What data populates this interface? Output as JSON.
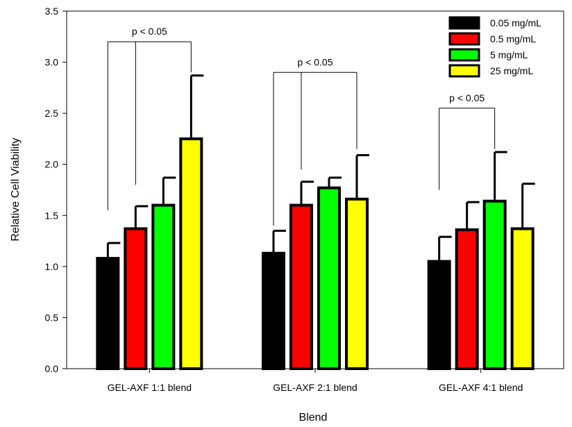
{
  "chart_data": {
    "type": "bar",
    "xlabel": "Blend",
    "ylabel": "Relative Cell Viability",
    "ylim": [
      0,
      3.5
    ],
    "yticks": [
      "0.0",
      "0.5",
      "1.0",
      "1.5",
      "2.0",
      "2.5",
      "3.0",
      "3.5"
    ],
    "categories": [
      "GEL-AXF 1:1 blend",
      "GEL-AXF 2:1 blend",
      "GEL-AXF 4:1 blend"
    ],
    "series": [
      {
        "name": "0.05 mg/mL",
        "color": "#000000",
        "values": [
          1.08,
          1.13,
          1.05
        ],
        "errors": [
          0.15,
          0.22,
          0.24
        ]
      },
      {
        "name": "0.5 mg/mL",
        "color": "#ff0000",
        "values": [
          1.37,
          1.6,
          1.36
        ],
        "errors": [
          0.22,
          0.23,
          0.27
        ]
      },
      {
        "name": "5 mg/mL",
        "color": "#00ff00",
        "values": [
          1.6,
          1.77,
          1.64
        ],
        "errors": [
          0.27,
          0.1,
          0.48
        ]
      },
      {
        "name": "25 mg/mL",
        "color": "#ffff00",
        "values": [
          2.25,
          1.66,
          1.37
        ],
        "errors": [
          0.62,
          0.43,
          0.44
        ]
      }
    ],
    "significance": [
      {
        "label": "p < 0.05",
        "group": 0,
        "bracket_y": 3.2,
        "bars": [
          0,
          1,
          3
        ],
        "ends": [
          1.55,
          1.8,
          2.9
        ]
      },
      {
        "label": "p < 0.05",
        "group": 1,
        "bracket_y": 2.9,
        "bars": [
          0,
          1,
          3
        ],
        "ends": [
          1.4,
          1.95,
          2.15
        ]
      },
      {
        "label": "p < 0.05",
        "group": 2,
        "bracket_y": 2.55,
        "bars": [
          0,
          2
        ],
        "ends": [
          1.75,
          2.15
        ]
      }
    ],
    "legend": {
      "position": "top-right"
    },
    "grid": false
  }
}
